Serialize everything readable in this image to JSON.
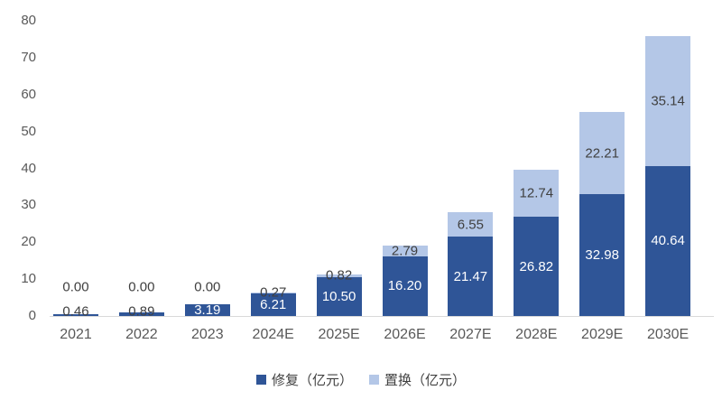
{
  "chart_data": {
    "type": "bar",
    "stacked": true,
    "title": "",
    "xlabel": "",
    "ylabel": "",
    "categories": [
      "2021",
      "2022",
      "2023",
      "2024E",
      "2025E",
      "2026E",
      "2027E",
      "2028E",
      "2029E",
      "2030E"
    ],
    "series": [
      {
        "name": "修复（亿元）",
        "color": "#2F5597",
        "values": [
          0.46,
          0.89,
          3.19,
          6.21,
          10.5,
          16.2,
          21.47,
          26.82,
          32.98,
          40.64
        ]
      },
      {
        "name": "置换（亿元）",
        "color": "#B4C7E7",
        "values": [
          0.0,
          0.0,
          0.0,
          0.27,
          0.82,
          2.79,
          6.55,
          12.74,
          22.21,
          35.14
        ]
      }
    ],
    "ylim": [
      0,
      80
    ],
    "ytick_step": 10,
    "ytick_labels": [
      "0",
      "10",
      "20",
      "30",
      "40",
      "50",
      "60",
      "70",
      "80"
    ],
    "grid": false,
    "legend_position": "bottom",
    "value_label_decimals": 2
  },
  "colors": {
    "dark_series": "#2F5597",
    "light_series": "#B4C7E7",
    "axis_line": "#D9D9D9",
    "tick_label": "#595959",
    "value_label": "#404040",
    "inside_value_label": "#FFFFFF",
    "background": "#FFFFFF"
  }
}
